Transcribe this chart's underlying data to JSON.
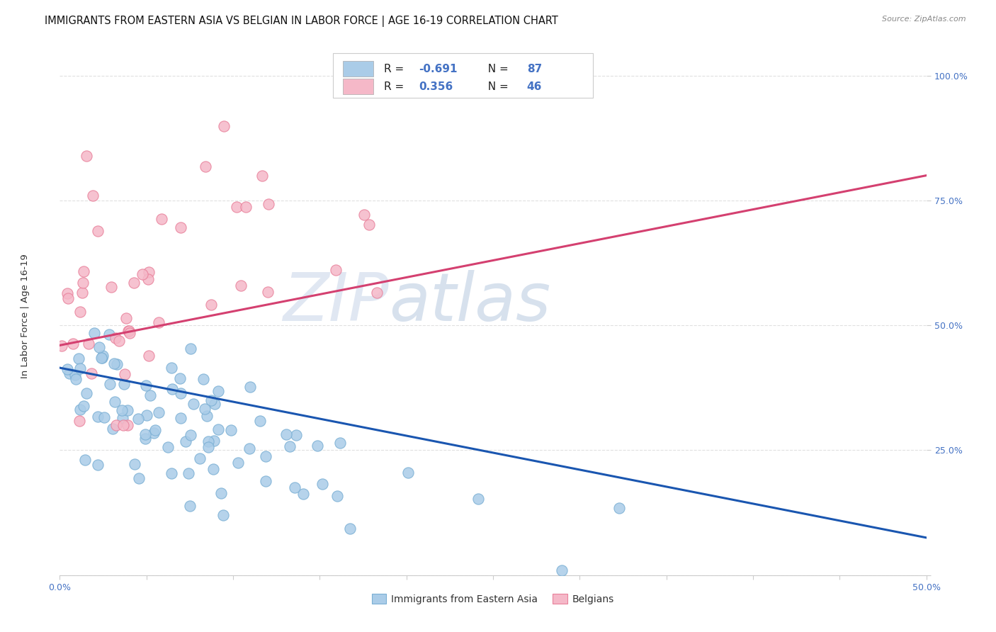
{
  "title": "IMMIGRANTS FROM EASTERN ASIA VS BELGIAN IN LABOR FORCE | AGE 16-19 CORRELATION CHART",
  "source": "Source: ZipAtlas.com",
  "ylabel": "In Labor Force | Age 16-19",
  "xlim": [
    0.0,
    0.5
  ],
  "ylim": [
    0.0,
    1.05
  ],
  "xticks": [
    0.0,
    0.05,
    0.1,
    0.15,
    0.2,
    0.25,
    0.3,
    0.35,
    0.4,
    0.45,
    0.5
  ],
  "yticks": [
    0.0,
    0.25,
    0.5,
    0.75,
    1.0
  ],
  "blue_color": "#aacce8",
  "blue_edge_color": "#7aafd4",
  "pink_color": "#f5b8c8",
  "pink_edge_color": "#e8809a",
  "blue_line_color": "#1a56b0",
  "pink_line_color": "#d44070",
  "watermark_zip_color": "#d0ddf0",
  "watermark_atlas_color": "#b8cde8",
  "background_color": "#ffffff",
  "grid_color": "#e0e0e0",
  "seed": 42,
  "n_blue": 87,
  "n_pink": 46,
  "r_blue": -0.691,
  "r_pink": 0.356,
  "blue_trend_x": [
    0.0,
    0.5
  ],
  "blue_trend_y": [
    0.415,
    0.075
  ],
  "pink_trend_x": [
    0.0,
    0.5
  ],
  "pink_trend_y": [
    0.46,
    0.8
  ],
  "title_fontsize": 10.5,
  "axis_label_fontsize": 9.5,
  "tick_fontsize": 9,
  "legend_fontsize": 11
}
